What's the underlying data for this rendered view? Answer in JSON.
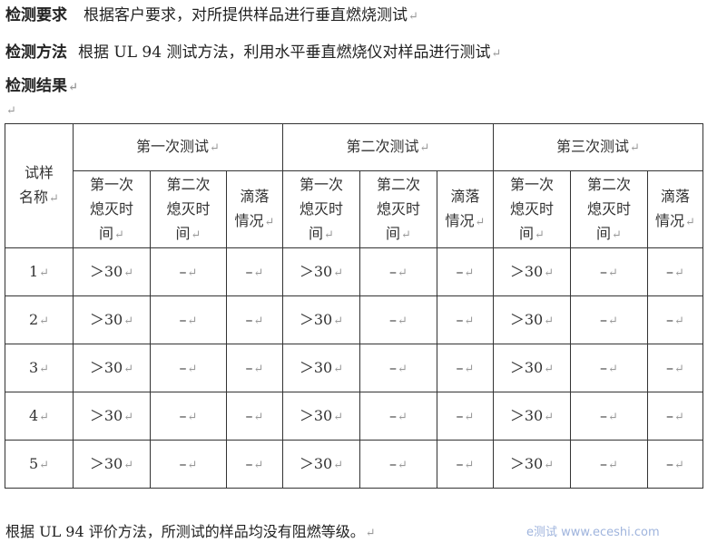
{
  "requirement": {
    "label": "检测要求",
    "text": "根据客户要求，对所提供样品进行垂直燃烧测试"
  },
  "method": {
    "label": "检测方法",
    "text": "根据 UL 94 测试方法，利用水平垂直燃烧仪对样品进行测试"
  },
  "results": {
    "label": "检测结果"
  },
  "table": {
    "sample_header": [
      "试样",
      "名称"
    ],
    "groups": [
      "第一次测试",
      "第二次测试",
      "第三次测试"
    ],
    "subheaders": [
      [
        "第一次",
        "熄灭时",
        "间"
      ],
      [
        "第二次",
        "熄灭时",
        "间"
      ],
      [
        "滴落",
        "情况"
      ]
    ],
    "rows": [
      {
        "name": "1",
        "cells": [
          "＞30",
          "–",
          "–",
          "＞30",
          "–",
          "–",
          "＞30",
          "–",
          "–"
        ]
      },
      {
        "name": "2",
        "cells": [
          "＞30",
          "–",
          "–",
          "＞30",
          "–",
          "–",
          "＞30",
          "–",
          "–"
        ]
      },
      {
        "name": "3",
        "cells": [
          "＞30",
          "–",
          "–",
          "＞30",
          "–",
          "–",
          "＞30",
          "–",
          "–"
        ]
      },
      {
        "name": "4",
        "cells": [
          "＞30",
          "–",
          "–",
          "＞30",
          "–",
          "–",
          "＞30",
          "–",
          "–"
        ]
      },
      {
        "name": "5",
        "cells": [
          "＞30",
          "–",
          "–",
          "＞30",
          "–",
          "–",
          "＞30",
          "–",
          "–"
        ]
      }
    ]
  },
  "conclusion": "根据 UL 94 评价方法，所测试的样品均没有阻燃等级。",
  "watermark": "e测试 www.eceshi.com"
}
